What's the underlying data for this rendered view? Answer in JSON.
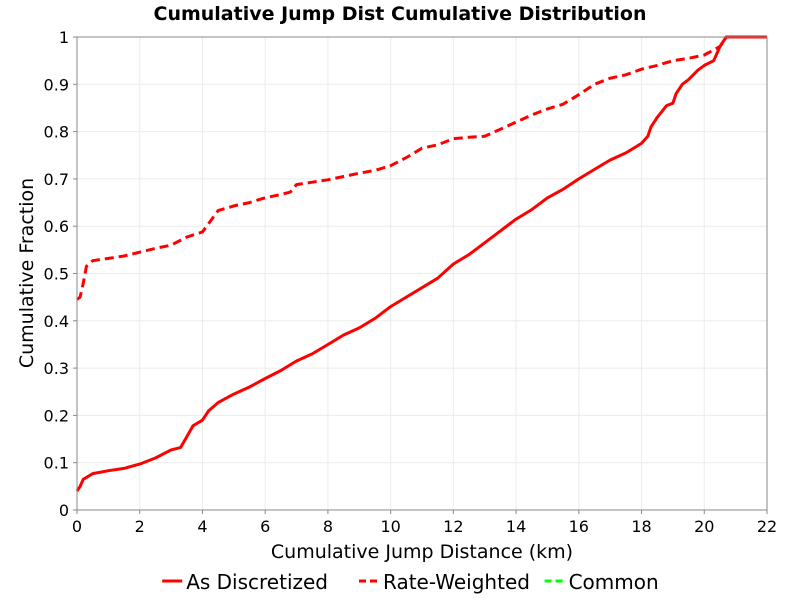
{
  "chart_data": {
    "type": "line",
    "title": "Cumulative Jump Dist Cumulative Distribution",
    "xlabel": "Cumulative Jump Distance (km)",
    "ylabel": "Cumulative Fraction",
    "xlim": [
      0,
      22
    ],
    "ylim": [
      0,
      1
    ],
    "xticks": [
      0,
      2,
      4,
      6,
      8,
      10,
      12,
      14,
      16,
      18,
      20,
      22
    ],
    "yticks": [
      0,
      0.1,
      0.2,
      0.3,
      0.4,
      0.5,
      0.6,
      0.7,
      0.8,
      0.9,
      1
    ],
    "grid": true,
    "legend_position": "bottom",
    "series": [
      {
        "name": "As Discretized",
        "color": "#ff0000",
        "dash": "solid",
        "x": [
          0,
          0.1,
          0.2,
          0.5,
          1.0,
          1.5,
          2.0,
          2.5,
          3.0,
          3.3,
          3.5,
          3.7,
          4.0,
          4.2,
          4.5,
          5.0,
          5.5,
          6.0,
          6.5,
          7.0,
          7.5,
          8.0,
          8.5,
          9.0,
          9.5,
          10.0,
          10.5,
          11.0,
          11.5,
          12.0,
          12.5,
          13.0,
          13.5,
          14.0,
          14.5,
          15.0,
          15.5,
          16.0,
          16.5,
          17.0,
          17.5,
          18.0,
          18.2,
          18.3,
          18.5,
          18.8,
          19.0,
          19.1,
          19.3,
          19.5,
          19.8,
          20.0,
          20.3,
          20.5,
          20.7,
          21.0,
          22.0
        ],
        "y": [
          0.04,
          0.05,
          0.065,
          0.077,
          0.083,
          0.088,
          0.097,
          0.11,
          0.127,
          0.132,
          0.155,
          0.178,
          0.19,
          0.21,
          0.227,
          0.245,
          0.26,
          0.278,
          0.295,
          0.315,
          0.33,
          0.35,
          0.37,
          0.385,
          0.405,
          0.43,
          0.45,
          0.47,
          0.49,
          0.52,
          0.54,
          0.565,
          0.59,
          0.615,
          0.635,
          0.66,
          0.678,
          0.7,
          0.72,
          0.74,
          0.755,
          0.775,
          0.79,
          0.81,
          0.83,
          0.855,
          0.86,
          0.88,
          0.9,
          0.91,
          0.93,
          0.94,
          0.95,
          0.98,
          1.0,
          1.0,
          1.0
        ]
      },
      {
        "name": "Rate-Weighted",
        "color": "#ff0000",
        "dash": "dashed",
        "x": [
          0,
          0.1,
          0.2,
          0.3,
          0.5,
          1.0,
          1.5,
          2.0,
          2.5,
          3.0,
          3.5,
          4.0,
          4.3,
          4.5,
          5.0,
          5.5,
          6.0,
          6.5,
          6.8,
          7.0,
          7.5,
          8.0,
          8.5,
          9.0,
          9.5,
          10.0,
          10.5,
          11.0,
          11.5,
          12.0,
          12.5,
          13.0,
          13.5,
          14.0,
          14.5,
          15.0,
          15.5,
          16.0,
          16.5,
          17.0,
          17.5,
          18.0,
          18.5,
          19.0,
          19.5,
          20.0,
          20.5,
          20.7,
          21.0,
          22.0
        ],
        "y": [
          0.445,
          0.45,
          0.48,
          0.515,
          0.527,
          0.532,
          0.537,
          0.545,
          0.553,
          0.56,
          0.577,
          0.588,
          0.615,
          0.633,
          0.643,
          0.65,
          0.66,
          0.667,
          0.672,
          0.688,
          0.693,
          0.698,
          0.705,
          0.712,
          0.718,
          0.728,
          0.745,
          0.765,
          0.772,
          0.785,
          0.788,
          0.79,
          0.805,
          0.82,
          0.835,
          0.848,
          0.858,
          0.878,
          0.9,
          0.913,
          0.92,
          0.932,
          0.94,
          0.95,
          0.955,
          0.962,
          0.98,
          1.0,
          1.0,
          1.0
        ]
      },
      {
        "name": "Common",
        "color": "#00ff00",
        "dash": "dashed",
        "x": [],
        "y": []
      }
    ]
  }
}
